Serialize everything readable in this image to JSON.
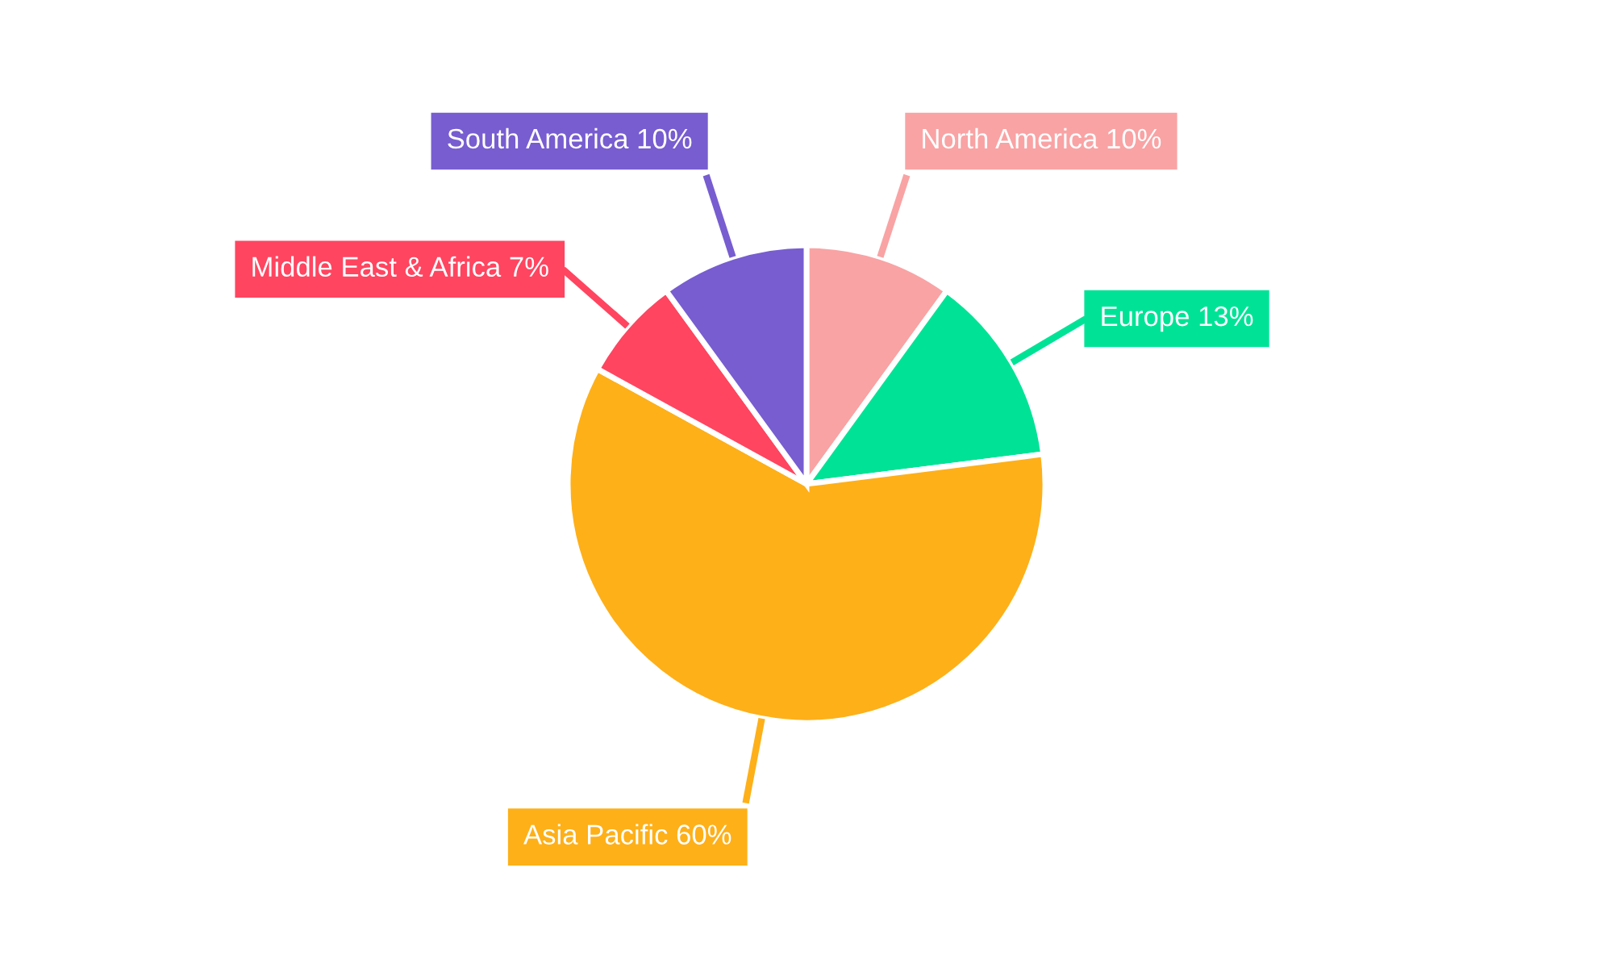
{
  "chart_data": {
    "type": "pie",
    "categories": [
      "North America",
      "Europe",
      "Asia Pacific",
      "Middle East & Africa",
      "South America"
    ],
    "values": [
      10,
      13,
      60,
      7,
      10
    ],
    "value_labels": [
      "10%",
      "13%",
      "60%",
      "7%",
      "10%"
    ],
    "colors": [
      "#f9a3a4",
      "#00e396",
      "#feb019",
      "#ff4560",
      "#775dd0"
    ],
    "legend": false
  }
}
